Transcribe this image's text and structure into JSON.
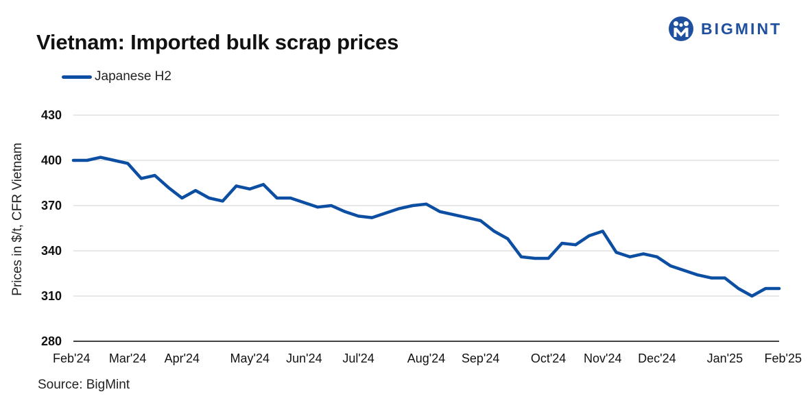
{
  "header": {
    "title": "Vietnam: Imported bulk scrap prices",
    "brand": "BIGMINT"
  },
  "footer": {
    "source": "Source: BigMint"
  },
  "colors": {
    "series": "#0b4ea2",
    "grid": "#d9d9d9",
    "axis": "#000000",
    "brand": "#1f4f9f"
  },
  "chart_data": {
    "type": "line",
    "title": "Vietnam: Imported bulk scrap prices",
    "xlabel": "",
    "ylabel": "Prices in $/t, CFR Vietnam",
    "ylim": [
      280,
      430
    ],
    "yticks": [
      430,
      400,
      370,
      340,
      310,
      280
    ],
    "grid": true,
    "legend_position": "top-left",
    "x_tick_labels": [
      "Feb'24",
      "Mar'24",
      "Apr'24",
      "May'24",
      "Jun'24",
      "Jul'24",
      "Aug'24",
      "Sep'24",
      "Oct'24",
      "Nov'24",
      "Dec'24",
      "Jan'25",
      "Feb'25"
    ],
    "x_tick_weeks": [
      0,
      4,
      8,
      13,
      17,
      21,
      26,
      30,
      35,
      39,
      43,
      48,
      52
    ],
    "x_weeks": [
      0,
      1,
      2,
      3,
      4,
      5,
      6,
      7,
      8,
      9,
      10,
      11,
      12,
      13,
      14,
      15,
      16,
      17,
      18,
      19,
      20,
      21,
      22,
      23,
      24,
      25,
      26,
      27,
      28,
      29,
      30,
      31,
      32,
      33,
      34,
      35,
      36,
      37,
      38,
      39,
      40,
      41,
      42,
      43,
      44,
      45,
      46,
      47,
      48,
      49,
      50,
      51,
      52
    ],
    "series": [
      {
        "name": "Japanese H2",
        "values": [
          400,
          400,
          402,
          400,
          398,
          388,
          390,
          382,
          375,
          380,
          375,
          373,
          383,
          381,
          384,
          375,
          375,
          372,
          369,
          370,
          366,
          363,
          362,
          365,
          368,
          370,
          371,
          366,
          364,
          362,
          360,
          353,
          348,
          336,
          335,
          335,
          345,
          344,
          350,
          353,
          339,
          336,
          338,
          336,
          330,
          327,
          324,
          322,
          322,
          315,
          310,
          315,
          315
        ]
      }
    ]
  }
}
